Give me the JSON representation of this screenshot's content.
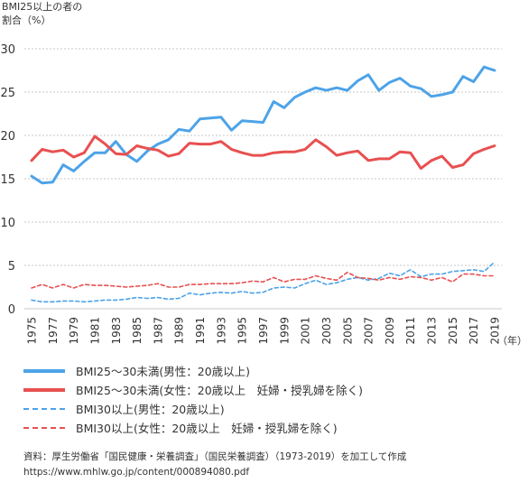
{
  "chart_data": {
    "type": "line",
    "title": "",
    "ylabel": "BMI25以上の者の\n割合（%）",
    "xlabel": "",
    "x_unit": "（年）",
    "ylim": [
      0,
      30
    ],
    "y_ticks": [
      "0",
      "5",
      "10",
      "15",
      "20",
      "25",
      "30"
    ],
    "x_ticks": [
      "1975",
      "1977",
      "1979",
      "1981",
      "1983",
      "1985",
      "1987",
      "1989",
      "1991",
      "1993",
      "1995",
      "1997",
      "1999",
      "2001",
      "2003",
      "2005",
      "2007",
      "2009",
      "2011",
      "2013",
      "2015",
      "2017",
      "2019"
    ],
    "x": [
      1975,
      1976,
      1977,
      1978,
      1979,
      1980,
      1981,
      1982,
      1983,
      1984,
      1985,
      1986,
      1987,
      1988,
      1989,
      1990,
      1991,
      1992,
      1993,
      1994,
      1995,
      1996,
      1997,
      1998,
      1999,
      2000,
      2001,
      2002,
      2003,
      2004,
      2005,
      2006,
      2007,
      2008,
      2009,
      2010,
      2011,
      2012,
      2013,
      2014,
      2015,
      2016,
      2017,
      2018,
      2019
    ],
    "grid": "horizontal-dashed",
    "legend_position": "below",
    "series": [
      {
        "name": "BMI25～30未満(男性：20歳以上)",
        "color": "#4da3e8",
        "style": "solid",
        "values": [
          15.3,
          14.5,
          14.6,
          16.6,
          15.9,
          17.0,
          18.0,
          18.0,
          19.3,
          17.8,
          17.0,
          18.2,
          19.0,
          19.5,
          20.7,
          20.5,
          21.9,
          22.0,
          22.1,
          20.6,
          21.7,
          21.6,
          21.5,
          23.9,
          23.2,
          24.4,
          25.0,
          25.5,
          25.2,
          25.5,
          25.2,
          26.3,
          27.0,
          25.2,
          26.1,
          26.6,
          25.7,
          25.4,
          24.5,
          24.7,
          25.0,
          26.8,
          26.2,
          27.9,
          27.5
        ]
      },
      {
        "name": "BMI25～30未満(女性：20歳以上　妊婦・授乳婦を除く)",
        "color": "#e85050",
        "style": "solid",
        "values": [
          17.1,
          18.4,
          18.1,
          18.3,
          17.5,
          18.0,
          19.9,
          19.0,
          17.9,
          17.8,
          18.8,
          18.5,
          18.3,
          17.6,
          17.9,
          19.1,
          19.0,
          19.0,
          19.3,
          18.4,
          18.0,
          17.7,
          17.7,
          18.0,
          18.1,
          18.1,
          18.4,
          19.5,
          18.7,
          17.7,
          18.0,
          18.2,
          17.1,
          17.3,
          17.3,
          18.1,
          18.0,
          16.2,
          17.1,
          17.6,
          16.3,
          16.6,
          17.9,
          18.4,
          18.8
        ]
      },
      {
        "name": "BMI30以上(男性：20歳以上)",
        "color": "#4da3e8",
        "style": "dashed",
        "values": [
          1.0,
          0.8,
          0.8,
          0.9,
          0.9,
          0.8,
          0.9,
          1.0,
          1.0,
          1.1,
          1.3,
          1.2,
          1.3,
          1.1,
          1.2,
          1.8,
          1.6,
          1.8,
          1.9,
          1.8,
          2.0,
          1.8,
          1.9,
          2.4,
          2.5,
          2.4,
          2.9,
          3.3,
          2.8,
          3.0,
          3.4,
          3.6,
          3.3,
          3.5,
          4.1,
          3.8,
          4.5,
          3.7,
          4.0,
          4.0,
          4.3,
          4.4,
          4.5,
          4.3,
          5.4
        ]
      },
      {
        "name": "BMI30以上(女性：20歳以上　妊婦・授乳婦を除く)",
        "color": "#e85050",
        "style": "dashed",
        "values": [
          2.4,
          2.8,
          2.4,
          2.8,
          2.4,
          2.8,
          2.7,
          2.7,
          2.6,
          2.5,
          2.6,
          2.7,
          2.9,
          2.5,
          2.5,
          2.8,
          2.8,
          2.9,
          2.9,
          2.9,
          3.0,
          3.2,
          3.1,
          3.6,
          3.1,
          3.4,
          3.4,
          3.8,
          3.5,
          3.3,
          4.2,
          3.6,
          3.5,
          3.3,
          3.6,
          3.4,
          3.7,
          3.6,
          3.3,
          3.6,
          3.1,
          4.0,
          4.0,
          3.8,
          3.8
        ]
      }
    ]
  },
  "source": {
    "line1": "資料：厚生労働省「国民健康・栄養調査」（国民栄養調査）（1973-2019）を加工して作成",
    "line2": "https://www.mhlw.go.jp/content/000894080.pdf"
  }
}
